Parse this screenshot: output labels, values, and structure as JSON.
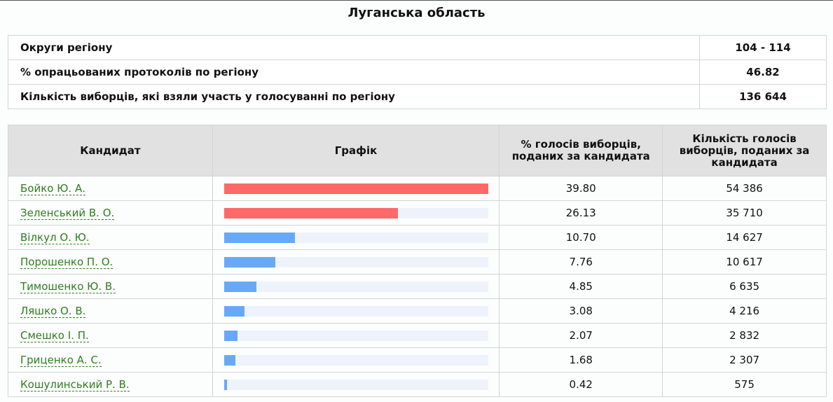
{
  "region_title": "Луганська область",
  "summary": [
    {
      "label": "Округи регіону",
      "value": "104 - 114"
    },
    {
      "label": "% опрацьованих протоколів по регіону",
      "value": "46.82"
    },
    {
      "label": "Кількість виборців, які взяли участь у голосуванні по регіону",
      "value": "136 644"
    }
  ],
  "columns": {
    "candidate": "Кандидат",
    "chart": "Графік",
    "percent": "% голосів виборців, поданих за кандидата",
    "votes": "Кількість голосів виборців, поданих за кандидата"
  },
  "colors": {
    "leader": "#ff6868",
    "other": "#68a9f7",
    "track": "#eef3fb",
    "link": "#2e7d1f"
  },
  "candidates": [
    {
      "name": "Бойко Ю. А.",
      "percent": "39.80",
      "votes": "54 386",
      "leader": true
    },
    {
      "name": "Зеленський В. О.",
      "percent": "26.13",
      "votes": "35 710",
      "leader": true
    },
    {
      "name": "Вілкул О. Ю.",
      "percent": "10.70",
      "votes": "14 627",
      "leader": false
    },
    {
      "name": "Порошенко П. О.",
      "percent": "7.76",
      "votes": "10 617",
      "leader": false
    },
    {
      "name": "Тимошенко Ю. В.",
      "percent": "4.85",
      "votes": "6 635",
      "leader": false
    },
    {
      "name": "Ляшко О. В.",
      "percent": "3.08",
      "votes": "4 216",
      "leader": false
    },
    {
      "name": "Смешко І. П.",
      "percent": "2.07",
      "votes": "2 832",
      "leader": false
    },
    {
      "name": "Гриценко А. С.",
      "percent": "1.68",
      "votes": "2 307",
      "leader": false
    },
    {
      "name": "Кошулинський Р. В.",
      "percent": "0.42",
      "votes": "575",
      "leader": false
    }
  ]
}
